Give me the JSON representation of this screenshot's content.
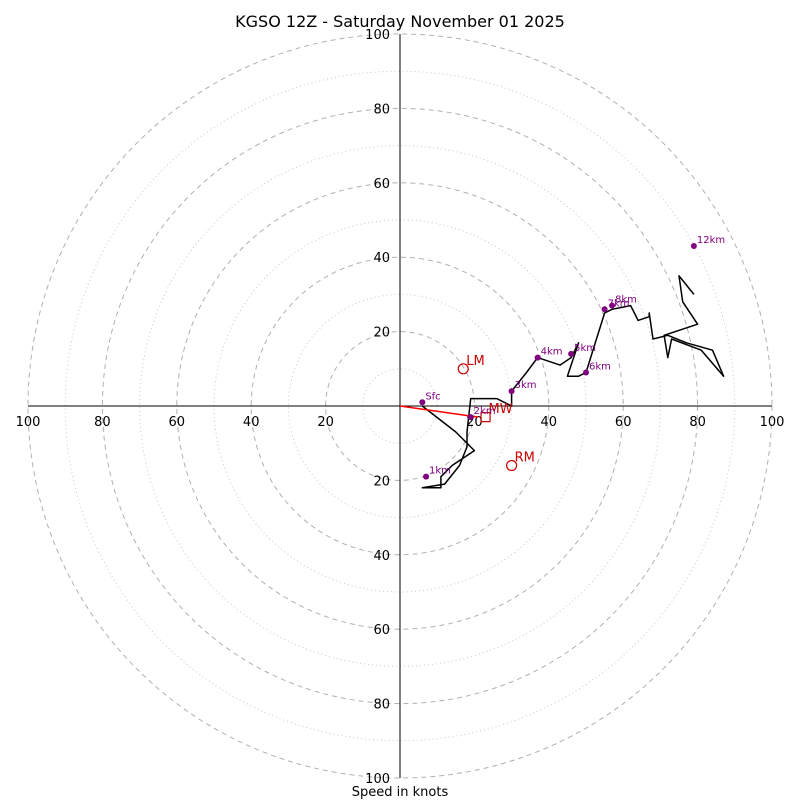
{
  "chart_data": {
    "type": "hodograph",
    "title": "KGSO 12Z - Saturday November 01 2025",
    "xlabel": "Speed in knots",
    "max_speed": 100,
    "ring_step": 20,
    "axis_ticks": [
      20,
      40,
      60,
      80,
      100
    ],
    "colors": {
      "trace": "#000000",
      "height_marker": "#800080",
      "storm_motion": "#cc0000",
      "shear_vector": "#ff0000",
      "ring_major": "#b0b0b0",
      "ring_minor": "#c8c8c8"
    },
    "trace": [
      [
        6,
        0
      ],
      [
        15,
        -7
      ],
      [
        20,
        -12
      ],
      [
        14,
        -16
      ],
      [
        11,
        -19
      ],
      [
        11,
        -22
      ],
      [
        6,
        -22
      ],
      [
        12,
        -21
      ],
      [
        16,
        -16
      ],
      [
        18,
        -11
      ],
      [
        18,
        -7
      ],
      [
        19,
        2
      ],
      [
        26,
        2
      ],
      [
        30,
        0
      ],
      [
        30,
        4
      ],
      [
        34,
        9
      ],
      [
        37,
        13
      ],
      [
        43,
        11
      ],
      [
        46,
        13
      ],
      [
        48,
        17
      ],
      [
        45,
        8
      ],
      [
        48,
        8
      ],
      [
        50,
        9
      ],
      [
        55,
        25
      ],
      [
        57,
        26
      ],
      [
        62,
        27
      ],
      [
        63,
        25
      ],
      [
        64,
        23
      ],
      [
        67,
        24
      ],
      [
        67,
        25
      ],
      [
        68,
        18
      ],
      [
        72,
        19
      ],
      [
        77,
        17
      ],
      [
        84,
        15
      ],
      [
        87,
        8
      ],
      [
        81,
        15
      ],
      [
        73,
        18
      ],
      [
        72,
        13
      ],
      [
        71,
        19
      ],
      [
        80,
        22
      ],
      [
        76,
        28
      ],
      [
        75,
        35
      ],
      [
        79,
        30
      ]
    ],
    "height_markers": [
      {
        "label": "Sfc",
        "u": 6,
        "v": 1
      },
      {
        "label": "1km",
        "u": 7,
        "v": -19
      },
      {
        "label": "2km",
        "u": 19,
        "v": -3
      },
      {
        "label": "3km",
        "u": 30,
        "v": 4
      },
      {
        "label": "4km",
        "u": 37,
        "v": 13
      },
      {
        "label": "5km",
        "u": 46,
        "v": 14
      },
      {
        "label": "6km",
        "u": 50,
        "v": 9
      },
      {
        "label": "7km",
        "u": 55,
        "v": 26
      },
      {
        "label": "8km",
        "u": 57,
        "v": 27
      },
      {
        "label": "12km",
        "u": 79,
        "v": 43
      }
    ],
    "storm_motions": [
      {
        "label": "LM",
        "u": 17,
        "v": 10,
        "marker": "circle"
      },
      {
        "label": "RM",
        "u": 30,
        "v": -16,
        "marker": "circle"
      },
      {
        "label": "MW",
        "u": 23,
        "v": -3,
        "marker": "square"
      }
    ],
    "shear_vector": {
      "from": [
        0,
        0
      ],
      "to": [
        21,
        -3
      ]
    }
  }
}
